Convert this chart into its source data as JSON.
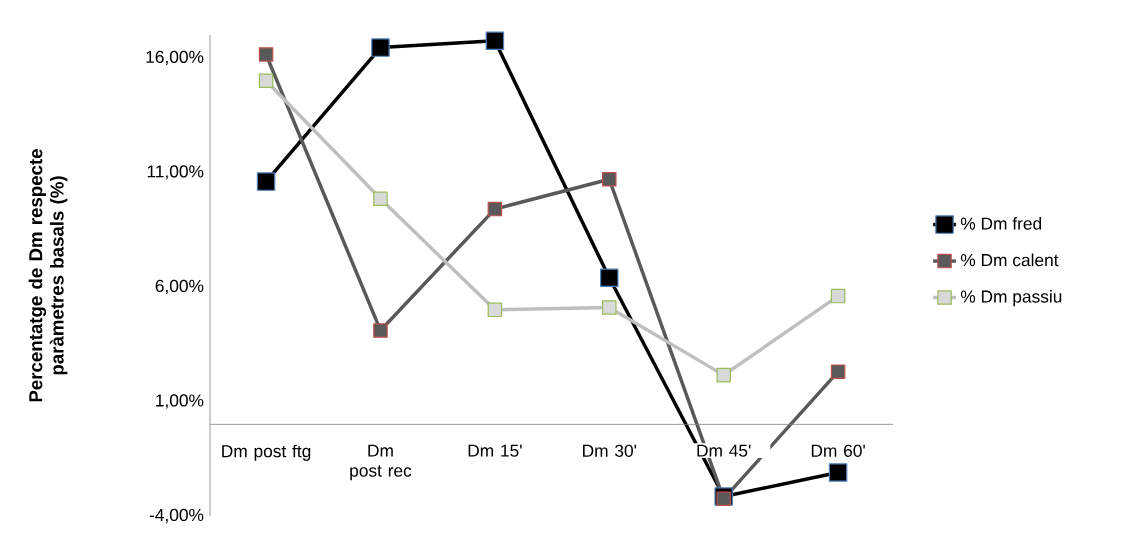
{
  "chart_data": {
    "type": "line",
    "ylabel": "Percentatge de Dm respecte paràmetres basals (%)",
    "categories": [
      "Dm post ftg",
      "Dm post rec",
      "Dm 15'",
      "Dm 30'",
      "Dm 45'",
      "Dm 60'"
    ],
    "series": [
      {
        "name": "% Dm fred",
        "color": "#000000",
        "values": [
          10.6,
          16.45,
          16.75,
          6.4,
          -3.15,
          -2.1
        ]
      },
      {
        "name": "% Dm calent",
        "color": "#595959",
        "values": [
          16.15,
          4.1,
          9.4,
          10.7,
          -3.25,
          2.3
        ]
      },
      {
        "name": "% Dm passiu",
        "color": "#bfbfbf",
        "values": [
          15.0,
          9.85,
          5.0,
          5.1,
          2.15,
          5.6
        ]
      }
    ],
    "ylim": [
      -4,
      17
    ],
    "yticks": [
      {
        "value": -4,
        "label": "-4,00%"
      },
      {
        "value": 1,
        "label": "1,00%"
      },
      {
        "value": 6,
        "label": "6,00%"
      },
      {
        "value": 11,
        "label": "11,00%"
      },
      {
        "value": 16,
        "label": "16,00%"
      }
    ],
    "grid": false,
    "legend": "right",
    "marker": "square",
    "line_style": "solid"
  }
}
